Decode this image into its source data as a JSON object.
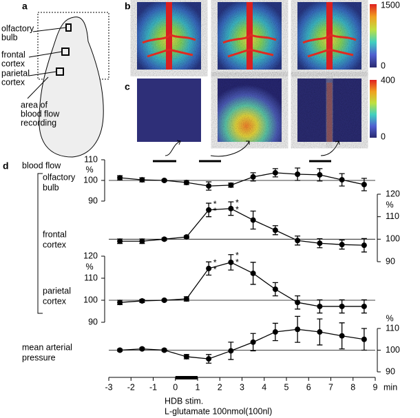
{
  "panel_labels": {
    "a": "a",
    "b": "b",
    "c": "c",
    "d": "d"
  },
  "panel_a": {
    "regions": [
      [
        "olfactory",
        "bulb"
      ],
      [
        "frontal",
        "cortex"
      ],
      [
        "parietal",
        "cortex"
      ],
      [
        "area of",
        "blood flow",
        "recording"
      ]
    ]
  },
  "panel_b": {
    "colorbar_max": 1500,
    "colorbar_min": 0
  },
  "panel_c": {
    "colorbar_max": 400,
    "colorbar_min": 0
  },
  "panel_d": {
    "heading": "blood flow"
  },
  "chart_data": [
    {
      "type": "line",
      "label_lines": [
        "olfactory",
        "bulb"
      ],
      "x": [
        -2.5,
        -1.5,
        -0.5,
        0.5,
        1.5,
        2.5,
        3.5,
        4.5,
        5.5,
        6.5,
        7.5,
        8.5
      ],
      "values": [
        101.3,
        100.3,
        100,
        99,
        97.3,
        97.7,
        101.7,
        103.7,
        103,
        102.7,
        100.3,
        98
      ],
      "errors": [
        1,
        1,
        0.5,
        1,
        2,
        1,
        2,
        2,
        3,
        3,
        3,
        3
      ],
      "color": "#000000",
      "ylim": [
        90,
        110
      ],
      "yticks": [
        90,
        100,
        110
      ],
      "y_unit": "%",
      "y_axis_side": "left",
      "reference_line": 100
    },
    {
      "type": "line",
      "label_lines": [
        "frontal",
        "cortex"
      ],
      "x": [
        -2.5,
        -1.5,
        -0.5,
        0.5,
        1.5,
        2.5,
        3.5,
        4.5,
        5.5,
        6.5,
        7.5,
        8.5
      ],
      "values": [
        99.1,
        99.1,
        100,
        101,
        113,
        113.6,
        108.5,
        104,
        99.4,
        98.2,
        97.6,
        97.3
      ],
      "errors": [
        1,
        1,
        0.5,
        0.5,
        3,
        3,
        4,
        2,
        2,
        2,
        2,
        3
      ],
      "color": "#000000",
      "ylim": [
        90,
        120
      ],
      "yticks": [
        90,
        100,
        110,
        120
      ],
      "y_unit": "%",
      "y_axis_side": "right",
      "reference_line": 100,
      "annotations": [
        {
          "x": 1.5,
          "lines": [
            "*",
            "*"
          ]
        },
        {
          "x": 2.5,
          "lines": [
            "*",
            "*"
          ]
        }
      ]
    },
    {
      "type": "line",
      "label_lines": [
        "parietal",
        "cortex"
      ],
      "x": [
        -2.5,
        -1.5,
        -0.5,
        0.5,
        1.5,
        2.5,
        3.5,
        4.5,
        5.5,
        6.5,
        7.5,
        8.5
      ],
      "values": [
        99,
        99.7,
        100,
        100.6,
        114.4,
        117.2,
        112.2,
        105,
        99,
        97.2,
        97.2,
        97.2
      ],
      "errors": [
        1,
        0.7,
        0.4,
        1,
        3,
        3.5,
        5,
        3,
        3,
        3,
        3,
        3
      ],
      "color": "#000000",
      "ylim": [
        90,
        120
      ],
      "yticks": [
        90,
        100,
        110,
        120
      ],
      "y_unit": "%",
      "y_axis_side": "left",
      "reference_line": 100,
      "annotations": [
        {
          "x": 1.5,
          "lines": [
            "*",
            "*"
          ]
        },
        {
          "x": 2.5,
          "lines": [
            "*",
            "*"
          ]
        }
      ]
    },
    {
      "type": "line",
      "label_lines": [
        "mean arterial",
        "pressure"
      ],
      "x": [
        -2.5,
        -1.5,
        -0.5,
        0.5,
        1.5,
        2.5,
        3.5,
        4.5,
        5.5,
        6.5,
        7.5,
        8.5
      ],
      "values": [
        100,
        100.6,
        100,
        97,
        96,
        99.7,
        103.7,
        108.4,
        109.6,
        108.4,
        106.6,
        105
      ],
      "errors": [
        0.5,
        0.5,
        0.5,
        1,
        2,
        4,
        4,
        4,
        6,
        6,
        6,
        5
      ],
      "color": "#000000",
      "ylim": [
        90,
        110
      ],
      "yticks": [
        90,
        100,
        110
      ],
      "y_unit": "%",
      "y_axis_side": "right",
      "reference_line": 100,
      "xlim": [
        -3,
        9
      ],
      "xticks": [
        -3,
        -2,
        -1,
        0,
        1,
        2,
        3,
        4,
        5,
        6,
        7,
        8,
        9
      ],
      "xlabel": "min",
      "stimulus": {
        "x": [
          0,
          1
        ],
        "label": "HDB stim.",
        "sublabel": "L-glutamate 100nmol(100nl)"
      }
    }
  ]
}
